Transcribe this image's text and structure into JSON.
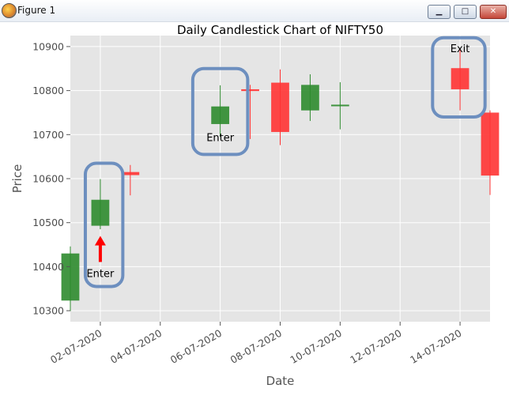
{
  "window": {
    "title": "Figure 1",
    "icon": "matplotlib-icon",
    "buttons": {
      "minimize": "▁",
      "maximize": "□",
      "close": "✕"
    }
  },
  "chart_data": {
    "type": "candlestick",
    "title": "Daily Candlestick Chart of NIFTY50",
    "xlabel": "Date",
    "ylabel": "Price",
    "ylim": [
      10275,
      10925
    ],
    "xlim": [
      "2020-07-01",
      "2020-07-15"
    ],
    "yticks": [
      10300,
      10400,
      10500,
      10600,
      10700,
      10800,
      10900
    ],
    "xtick_dates": [
      "2020-07-02",
      "2020-07-04",
      "2020-07-06",
      "2020-07-08",
      "2020-07-10",
      "2020-07-12",
      "2020-07-14"
    ],
    "xtick_labels": [
      "02-07-2020",
      "04-07-2020",
      "06-07-2020",
      "08-07-2020",
      "10-07-2020",
      "12-07-2020",
      "14-07-2020"
    ],
    "grid": true,
    "colors": {
      "up": "#2e8b2e",
      "down": "#ff3333",
      "background": "#e5e5e5",
      "grid": "#ffffff",
      "annotation_box": "#6d8fbf",
      "arrow": "#ff0000"
    },
    "candles": [
      {
        "date": "2020-07-01",
        "open": 10323,
        "close": 10430,
        "high": 10446,
        "low": 10299
      },
      {
        "date": "2020-07-02",
        "open": 10493,
        "close": 10552,
        "high": 10599,
        "low": 10485
      },
      {
        "date": "2020-07-03",
        "open": 10615,
        "close": 10608,
        "high": 10631,
        "low": 10562
      },
      {
        "date": "2020-07-06",
        "open": 10724,
        "close": 10764,
        "high": 10812,
        "low": 10695
      },
      {
        "date": "2020-07-07",
        "open": 10803,
        "close": 10799,
        "high": 10813,
        "low": 10690
      },
      {
        "date": "2020-07-08",
        "open": 10818,
        "close": 10706,
        "high": 10848,
        "low": 10676
      },
      {
        "date": "2020-07-09",
        "open": 10755,
        "close": 10813,
        "high": 10837,
        "low": 10731
      },
      {
        "date": "2020-07-10",
        "open": 10766,
        "close": 10768,
        "high": 10819,
        "low": 10712
      },
      {
        "date": "2020-07-14",
        "open": 10851,
        "close": 10803,
        "high": 10893,
        "low": 10755
      },
      {
        "date": "2020-07-15",
        "open": 10750,
        "close": 10607,
        "high": 10755,
        "low": 10563
      }
    ],
    "annotations": [
      {
        "text": "Enter",
        "date": "2020-07-02",
        "arrow": true,
        "box": [
          "2020-07-01 12:00",
          "2020-07-02 18:00",
          10355,
          10635
        ]
      },
      {
        "text": "Enter",
        "date": "2020-07-06",
        "arrow": false,
        "box": [
          "2020-07-05 02:00",
          "2020-07-06 22:00",
          10655,
          10850
        ]
      },
      {
        "text": "Exit",
        "date": "2020-07-14",
        "arrow": false,
        "box": [
          "2020-07-13 02:00",
          "2020-07-14 20:00",
          10740,
          10920
        ]
      }
    ]
  }
}
